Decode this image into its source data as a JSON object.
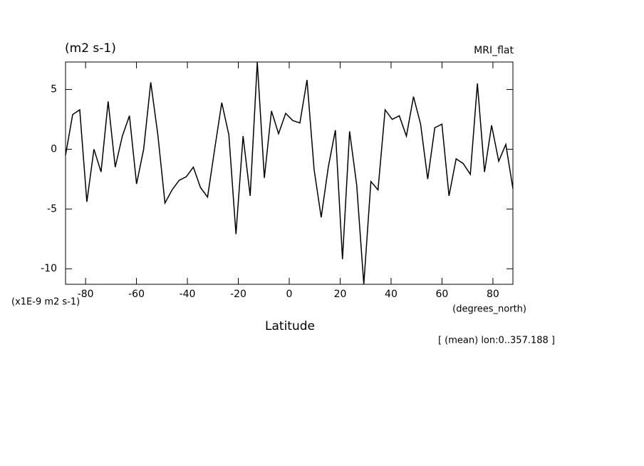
{
  "chart_data": {
    "type": "line",
    "title": "(m2 s-1)",
    "subtitle": "MRI_flat",
    "y_scale_label": "(x1E-9 m2 s-1)",
    "x_unit_label": "(degrees_north)",
    "x_label": "Latitude",
    "annotation": "[ (mean) lon:0..357.188 ]",
    "x": [
      -87.86,
      -85.07,
      -82.28,
      -79.49,
      -76.7,
      -73.91,
      -71.13,
      -68.34,
      -65.55,
      -62.76,
      -59.97,
      -57.18,
      -54.39,
      -51.6,
      -48.81,
      -46.02,
      -43.23,
      -40.45,
      -37.66,
      -34.87,
      -32.08,
      -29.29,
      -26.5,
      -23.71,
      -20.92,
      -18.13,
      -15.34,
      -12.55,
      -9.77,
      -6.98,
      -4.19,
      -1.4,
      1.4,
      4.19,
      6.98,
      9.77,
      12.55,
      15.34,
      18.13,
      20.92,
      23.71,
      26.5,
      29.29,
      32.08,
      34.87,
      37.66,
      40.45,
      43.23,
      46.02,
      48.81,
      51.6,
      54.39,
      57.18,
      59.97,
      62.76,
      65.55,
      68.34,
      71.13,
      73.91,
      76.7,
      79.49,
      82.28,
      85.07,
      87.86
    ],
    "series": [
      {
        "color": "#000000",
        "values": [
          -0.5,
          2.9,
          3.3,
          -4.4,
          0.0,
          -1.9,
          4.0,
          -1.5,
          1.1,
          2.8,
          -2.9,
          0.0,
          5.6,
          1.2,
          -4.5,
          -3.4,
          -2.6,
          -2.3,
          -1.5,
          -3.2,
          -4.0,
          0.0,
          3.9,
          1.2,
          -7.1,
          1.1,
          -3.9,
          7.3,
          -2.4,
          3.2,
          1.3,
          3.0,
          2.4,
          2.2,
          5.8,
          -1.7,
          -5.7,
          -1.5,
          1.6,
          -9.2,
          1.5,
          -3.0,
          -11.3,
          -2.7,
          -3.4,
          3.3,
          2.5,
          2.8,
          1.1,
          4.4,
          2.1,
          -2.5,
          1.8,
          2.1,
          -3.9,
          -0.8,
          -1.2,
          -2.1,
          5.5,
          -1.9,
          2.0,
          -1.0,
          0.4,
          -3.3
        ]
      }
    ],
    "xlim": [
      -87.86,
      87.86
    ],
    "ylim": [
      -11.3,
      7.3
    ],
    "xticks": [
      -80,
      -60,
      -40,
      -20,
      0,
      20,
      40,
      60,
      80
    ],
    "yticks": [
      -10,
      -5,
      0,
      5
    ],
    "grid": false
  }
}
